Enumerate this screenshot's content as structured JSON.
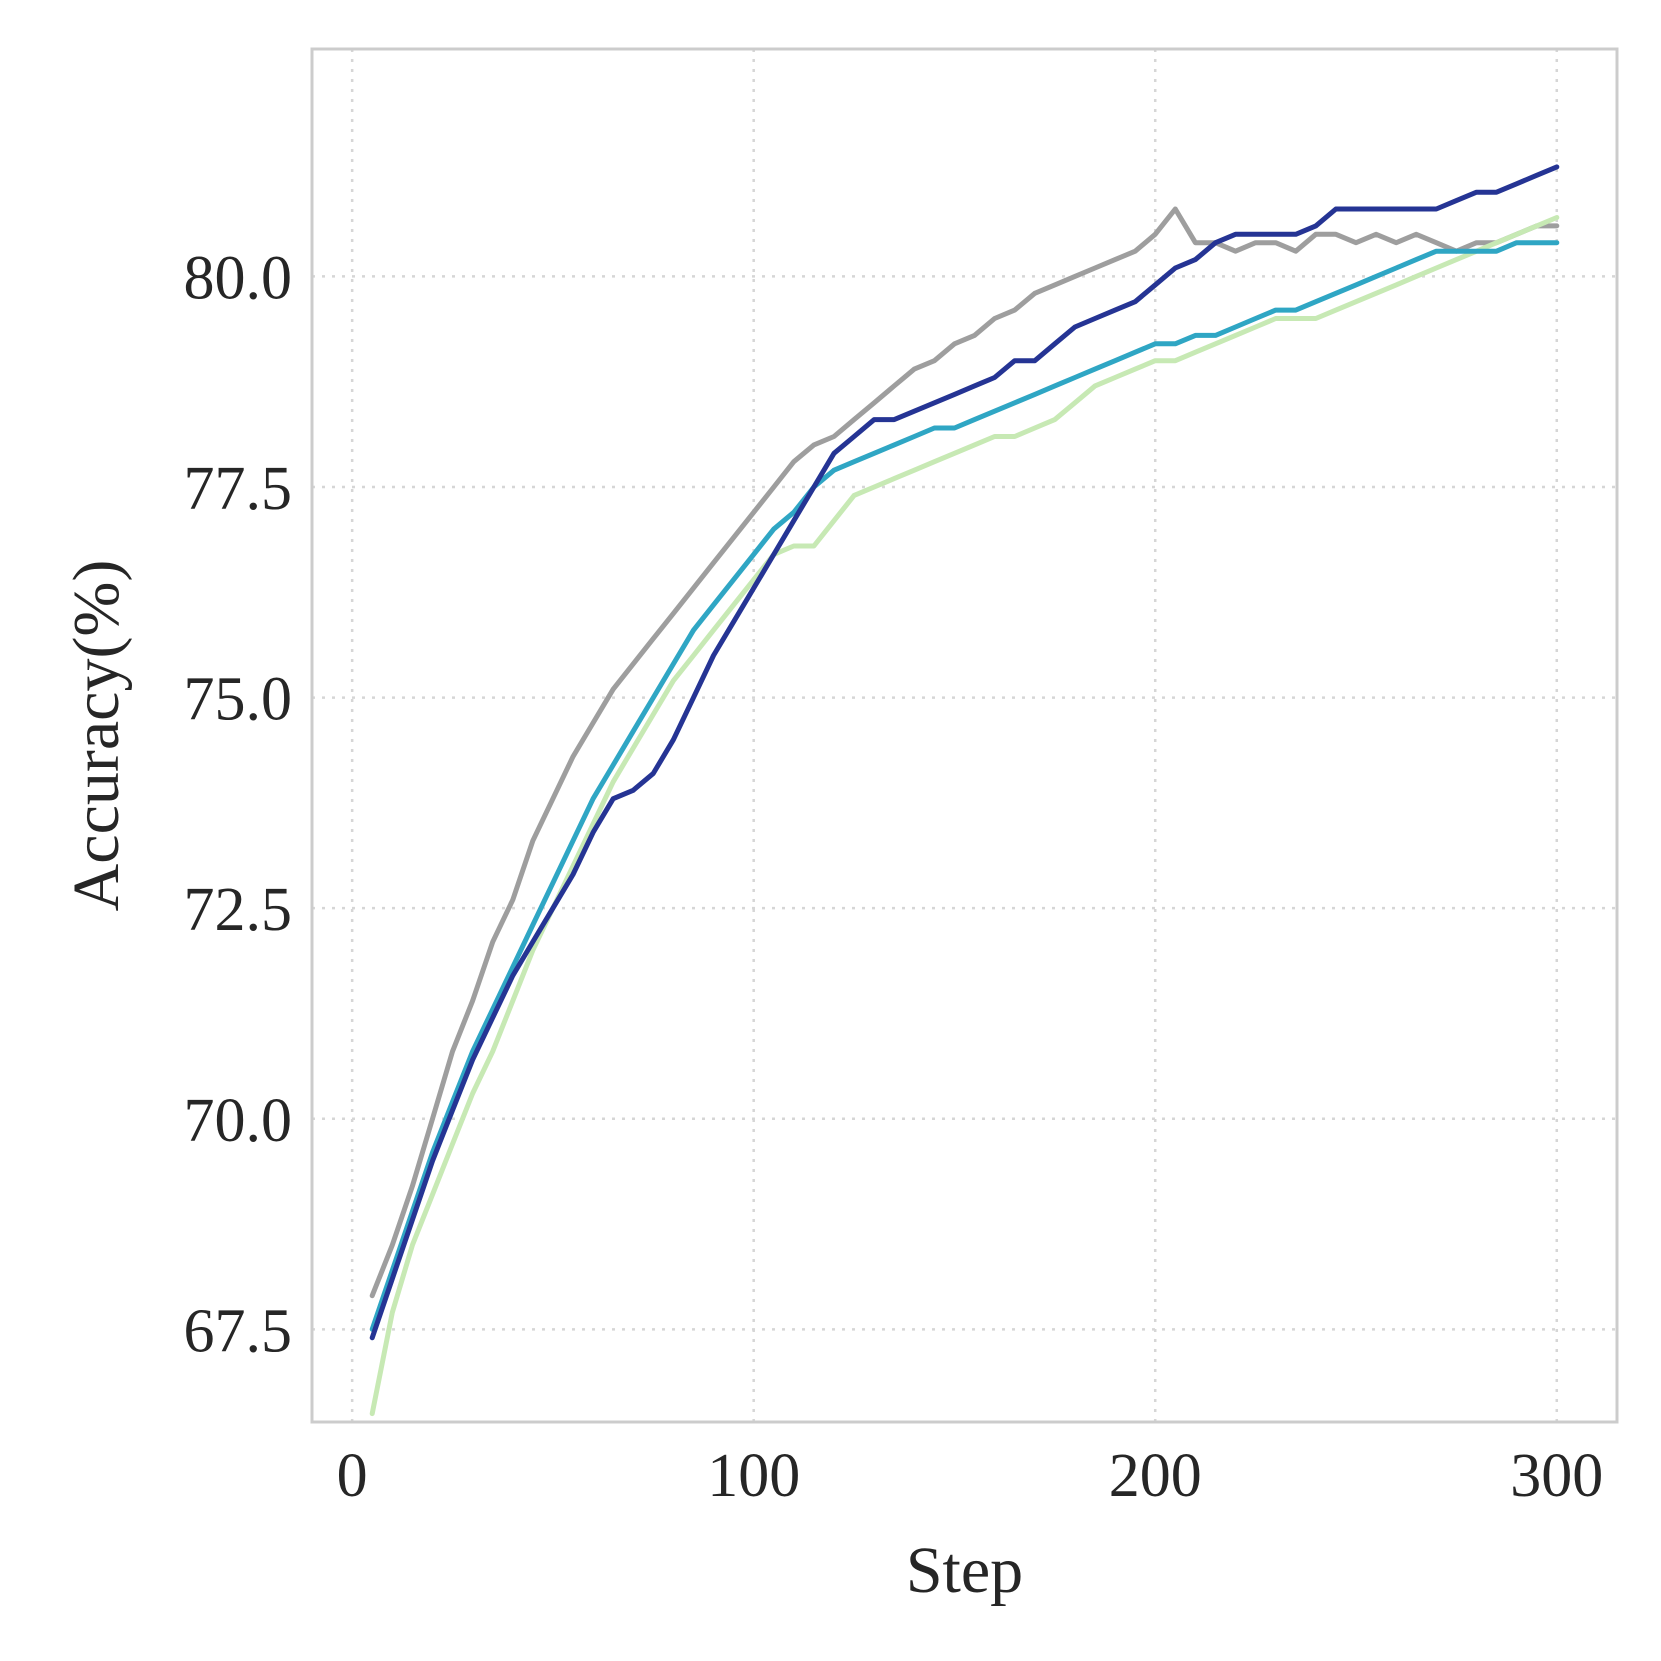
{
  "chart_data": {
    "type": "line",
    "title": "",
    "xlabel": "Step",
    "ylabel": "Accuracy(%)",
    "xlim": [
      -10,
      315
    ],
    "ylim": [
      66.4,
      82.7
    ],
    "xticks": [
      0,
      100,
      200,
      300
    ],
    "xtick_labels": [
      "0",
      "100",
      "200",
      "300"
    ],
    "yticks": [
      67.5,
      70.0,
      72.5,
      75.0,
      77.5,
      80.0
    ],
    "ytick_labels": [
      "67.5",
      "70.0",
      "72.5",
      "75.0",
      "77.5",
      "80.0"
    ],
    "grid": true,
    "x": [
      5,
      10,
      15,
      20,
      25,
      30,
      35,
      40,
      45,
      50,
      55,
      60,
      65,
      70,
      75,
      80,
      85,
      90,
      95,
      100,
      105,
      110,
      115,
      120,
      125,
      130,
      135,
      140,
      145,
      150,
      155,
      160,
      165,
      170,
      175,
      180,
      185,
      190,
      195,
      200,
      205,
      210,
      215,
      220,
      225,
      230,
      235,
      240,
      245,
      250,
      255,
      260,
      265,
      270,
      275,
      280,
      285,
      290,
      295,
      300
    ],
    "series": [
      {
        "color": "#9e9e9e",
        "values": [
          67.9,
          68.5,
          69.2,
          70.0,
          70.8,
          71.4,
          72.1,
          72.6,
          73.3,
          73.8,
          74.3,
          74.7,
          75.1,
          75.4,
          75.7,
          76.0,
          76.3,
          76.6,
          76.9,
          77.2,
          77.5,
          77.8,
          78.0,
          78.1,
          78.3,
          78.5,
          78.7,
          78.9,
          79.0,
          79.2,
          79.3,
          79.5,
          79.6,
          79.8,
          79.9,
          80.0,
          80.1,
          80.2,
          80.3,
          80.5,
          80.8,
          80.4,
          80.4,
          80.3,
          80.4,
          80.4,
          80.3,
          80.5,
          80.5,
          80.4,
          80.5,
          80.4,
          80.5,
          80.4,
          80.3,
          80.4,
          80.4,
          80.5,
          80.6,
          80.6
        ]
      },
      {
        "color": "#c7e9b4",
        "values": [
          66.5,
          67.7,
          68.5,
          69.1,
          69.7,
          70.3,
          70.8,
          71.4,
          72.0,
          72.5,
          73.0,
          73.5,
          74.0,
          74.4,
          74.8,
          75.2,
          75.5,
          75.8,
          76.1,
          76.4,
          76.7,
          76.8,
          76.8,
          77.1,
          77.4,
          77.5,
          77.6,
          77.7,
          77.8,
          77.9,
          78.0,
          78.1,
          78.1,
          78.2,
          78.3,
          78.5,
          78.7,
          78.8,
          78.9,
          79.0,
          79.0,
          79.1,
          79.2,
          79.3,
          79.4,
          79.5,
          79.5,
          79.5,
          79.6,
          79.7,
          79.8,
          79.9,
          80.0,
          80.1,
          80.2,
          80.3,
          80.4,
          80.5,
          80.6,
          80.7
        ]
      },
      {
        "color": "#2fa6c4",
        "values": [
          67.5,
          68.2,
          68.9,
          69.6,
          70.2,
          70.8,
          71.3,
          71.8,
          72.3,
          72.8,
          73.3,
          73.8,
          74.2,
          74.6,
          75.0,
          75.4,
          75.8,
          76.1,
          76.4,
          76.7,
          77.0,
          77.2,
          77.5,
          77.7,
          77.8,
          77.9,
          78.0,
          78.1,
          78.2,
          78.2,
          78.3,
          78.4,
          78.5,
          78.6,
          78.7,
          78.8,
          78.9,
          79.0,
          79.1,
          79.2,
          79.2,
          79.3,
          79.3,
          79.4,
          79.5,
          79.6,
          79.6,
          79.7,
          79.8,
          79.9,
          80.0,
          80.1,
          80.2,
          80.3,
          80.3,
          80.3,
          80.3,
          80.4,
          80.4,
          80.4
        ]
      },
      {
        "color": "#253494",
        "values": [
          67.4,
          68.1,
          68.8,
          69.5,
          70.1,
          70.7,
          71.2,
          71.7,
          72.1,
          72.5,
          72.9,
          73.4,
          73.8,
          73.9,
          74.1,
          74.5,
          75.0,
          75.5,
          75.9,
          76.3,
          76.7,
          77.1,
          77.5,
          77.9,
          78.1,
          78.3,
          78.3,
          78.4,
          78.5,
          78.6,
          78.7,
          78.8,
          79.0,
          79.0,
          79.2,
          79.4,
          79.5,
          79.6,
          79.7,
          79.9,
          80.1,
          80.2,
          80.4,
          80.5,
          80.5,
          80.5,
          80.5,
          80.6,
          80.8,
          80.8,
          80.8,
          80.8,
          80.8,
          80.8,
          80.9,
          81.0,
          81.0,
          81.1,
          81.2,
          81.3
        ]
      }
    ]
  }
}
